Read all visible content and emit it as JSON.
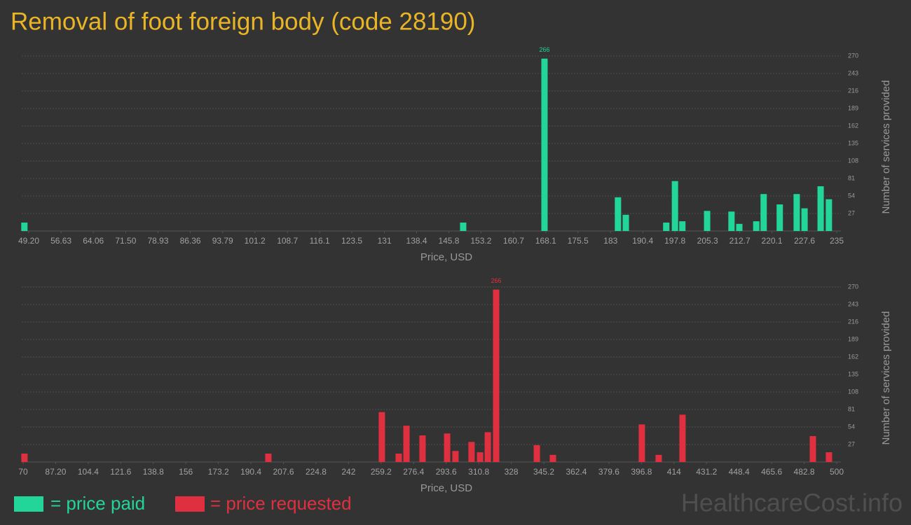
{
  "title": "Removal of foot foreign body (code 28190)",
  "watermark": "HealthcareCost.info",
  "chart_data": [
    {
      "type": "bar",
      "x_label": "Price, USD",
      "y_label": "Number of services provided",
      "grid": true,
      "xlim": [
        49.2,
        235
      ],
      "ylim": [
        0,
        270
      ],
      "xticks": [
        {
          "value": 49.2,
          "label": "49.20"
        },
        56.63,
        64.06,
        {
          "value": 71.5,
          "label": "71.50"
        },
        78.93,
        86.36,
        93.79,
        101.2,
        108.7,
        116.1,
        123.5,
        131,
        138.4,
        145.8,
        153.2,
        160.7,
        168.1,
        175.5,
        183,
        190.4,
        197.8,
        205.3,
        212.7,
        220.1,
        227.6,
        235
      ],
      "yticks": [
        27,
        54,
        81,
        108,
        135,
        162,
        189,
        216,
        243,
        270
      ],
      "series": [
        {
          "name": "= price paid",
          "color": "#22d699",
          "x": [
            48.2,
            149.1,
            167.8,
            184.7,
            186.5,
            195.8,
            197.8,
            199.5,
            205.2,
            210.8,
            212.6,
            216.5,
            218.2,
            221.9,
            225.8,
            227.6,
            231.3,
            233.2
          ],
          "values": [
            13,
            13,
            266,
            52,
            25,
            13,
            77,
            15,
            31,
            30,
            11,
            15,
            57,
            41,
            57,
            35,
            69,
            49
          ]
        }
      ]
    },
    {
      "type": "bar",
      "x_label": "Price, USD",
      "y_label": "Number of services provided",
      "grid": true,
      "xlim": [
        70,
        500
      ],
      "ylim": [
        0,
        270
      ],
      "xticks": [
        70,
        {
          "value": 87.2,
          "label": "87.20"
        },
        104.4,
        121.6,
        138.8,
        156,
        173.2,
        190.4,
        207.6,
        224.8,
        242,
        259.2,
        276.4,
        293.6,
        310.8,
        328,
        345.2,
        362.4,
        379.6,
        396.8,
        414,
        431.2,
        448.4,
        465.6,
        482.8,
        500
      ],
      "yticks": [
        27,
        54,
        81,
        108,
        135,
        162,
        189,
        216,
        243,
        270
      ],
      "series": [
        {
          "name": "= price requested",
          "color": "#e0303f",
          "x": [
            70.7,
            199.6,
            259.6,
            268.5,
            272.6,
            281.1,
            294.1,
            298.5,
            307,
            311.5,
            315.6,
            320,
            341.5,
            350,
            397,
            405.9,
            418.5,
            487.4,
            495.9
          ],
          "values": [
            13,
            13,
            77,
            13,
            56,
            41,
            44,
            17,
            31,
            15,
            46,
            266,
            26,
            11,
            58,
            11,
            73,
            40,
            15
          ]
        }
      ]
    }
  ]
}
